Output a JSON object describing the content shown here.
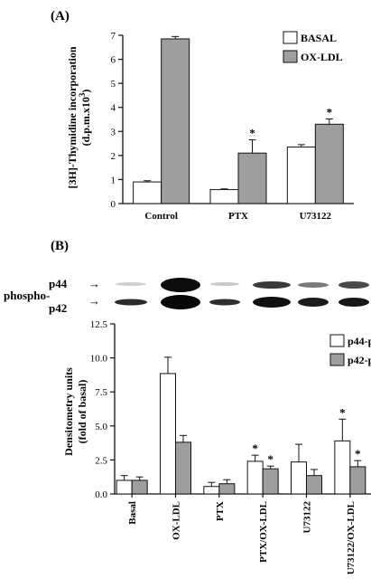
{
  "panelA": {
    "label": "(A)",
    "ylabel_line1": "[3H]-Thymidine incorporation",
    "ylabel_line2": "(d.p.m.x10",
    "ylabel_sup": "3",
    "ylabel_close": ")"
  },
  "panelB": {
    "label": "(B)",
    "blot": {
      "label_p44": "p44",
      "label_phospho": "phospho-",
      "label_p42": "p42",
      "arrow": "→"
    },
    "ylabel_line1": "Densitometry units",
    "ylabel_line2": "(fold of basal)"
  },
  "colors": {
    "open_bar": "#ffffff",
    "filled_bar": "#9e9e9e",
    "stroke": "#111111"
  },
  "chart_data": [
    {
      "type": "bar",
      "title": "",
      "xlabel": "",
      "ylabel": "[3H]-Thymidine incorporation (d.p.m.x10^3)",
      "ylim": [
        0,
        7
      ],
      "yticks": [
        "0",
        "1",
        "2",
        "3",
        "4",
        "5",
        "6",
        "7"
      ],
      "categories": [
        "Control",
        "PTX",
        "U73122"
      ],
      "series": [
        {
          "name": "BASAL",
          "values": [
            0.9,
            0.58,
            2.35
          ],
          "errors": [
            0.05,
            0.03,
            0.1
          ]
        },
        {
          "name": "OX-LDL",
          "values": [
            6.85,
            2.1,
            3.3
          ],
          "errors": [
            0.1,
            0.55,
            0.22
          ]
        }
      ],
      "significance": [
        {
          "category": "PTX",
          "series": "OX-LDL",
          "mark": "*"
        },
        {
          "category": "U73122",
          "series": "OX-LDL",
          "mark": "*"
        }
      ],
      "legend_position": "top-right",
      "grid": false
    },
    {
      "type": "bar",
      "title": "",
      "xlabel": "",
      "ylabel": "Densitometry units (fold of basal)",
      "ylim": [
        0,
        12.5
      ],
      "yticks": [
        "0.0",
        "2.5",
        "5.0",
        "7.5",
        "10.0",
        "12.5"
      ],
      "categories": [
        "Basal",
        "OX-LDL",
        "PTX",
        "PTX/OX-LDL",
        "U73122",
        "U73122/OX-LDL"
      ],
      "series": [
        {
          "name": "p44-p",
          "values": [
            1.0,
            8.85,
            0.55,
            2.4,
            2.35,
            3.9
          ],
          "errors": [
            0.35,
            1.2,
            0.3,
            0.45,
            1.3,
            1.6
          ]
        },
        {
          "name": "p42-p",
          "values": [
            1.0,
            3.8,
            0.75,
            1.85,
            1.35,
            2.0
          ],
          "errors": [
            0.25,
            0.5,
            0.3,
            0.2,
            0.45,
            0.45
          ]
        }
      ],
      "significance": [
        {
          "category": "PTX/OX-LDL",
          "series": "p44-p",
          "mark": "*"
        },
        {
          "category": "PTX/OX-LDL",
          "series": "p42-p",
          "mark": "*"
        },
        {
          "category": "U73122/OX-LDL",
          "series": "p44-p",
          "mark": "*"
        },
        {
          "category": "U73122/OX-LDL",
          "series": "p42-p",
          "mark": "*"
        }
      ],
      "legend_position": "top-right",
      "grid": false
    }
  ]
}
